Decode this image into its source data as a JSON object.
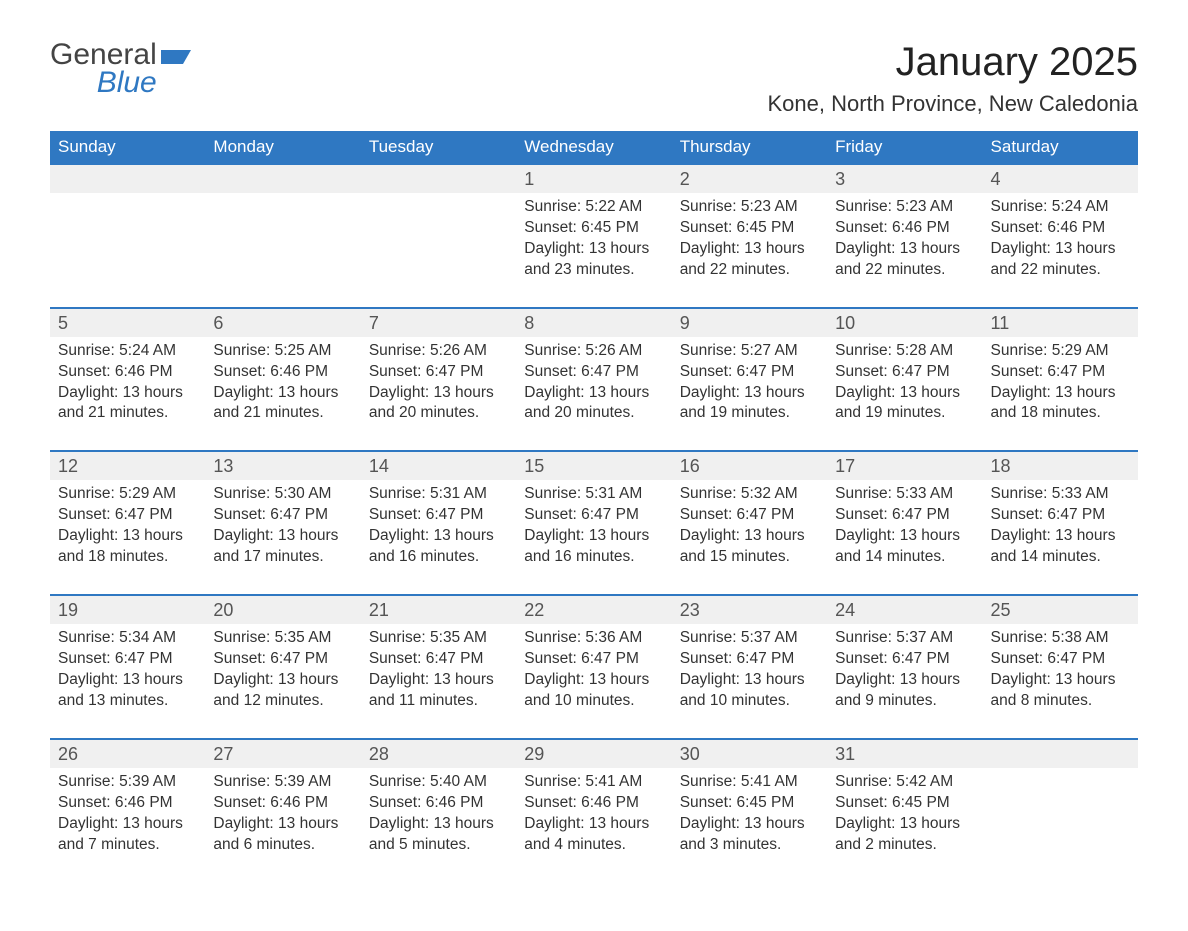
{
  "branding": {
    "logo_general": "General",
    "logo_blue": "Blue",
    "logo_color_dark": "#444444",
    "logo_color_accent": "#2f78c2"
  },
  "header": {
    "title": "January 2025",
    "location": "Kone, North Province, New Caledonia"
  },
  "style": {
    "accent": "#2f78c2",
    "header_row_bg": "#2f78c2",
    "header_text_color": "#ffffff",
    "daynum_bg": "#f0f0f0",
    "divider_color": "#2f78c2",
    "body_bg": "#ffffff",
    "font_family": "Arial",
    "title_fontsize": 40,
    "subtitle_fontsize": 22,
    "dayheader_fontsize": 17,
    "cell_fontsize": 15.5
  },
  "labels": {
    "sunrise": "Sunrise",
    "sunset": "Sunset",
    "daylight": "Daylight"
  },
  "calendar": {
    "type": "calendar-month",
    "columns": 7,
    "day_headers": [
      "Sunday",
      "Monday",
      "Tuesday",
      "Wednesday",
      "Thursday",
      "Friday",
      "Saturday"
    ],
    "weeks": [
      [
        null,
        null,
        null,
        {
          "day": 1,
          "sunrise": "5:22 AM",
          "sunset": "6:45 PM",
          "daylight": "13 hours and 23 minutes."
        },
        {
          "day": 2,
          "sunrise": "5:23 AM",
          "sunset": "6:45 PM",
          "daylight": "13 hours and 22 minutes."
        },
        {
          "day": 3,
          "sunrise": "5:23 AM",
          "sunset": "6:46 PM",
          "daylight": "13 hours and 22 minutes."
        },
        {
          "day": 4,
          "sunrise": "5:24 AM",
          "sunset": "6:46 PM",
          "daylight": "13 hours and 22 minutes."
        }
      ],
      [
        {
          "day": 5,
          "sunrise": "5:24 AM",
          "sunset": "6:46 PM",
          "daylight": "13 hours and 21 minutes."
        },
        {
          "day": 6,
          "sunrise": "5:25 AM",
          "sunset": "6:46 PM",
          "daylight": "13 hours and 21 minutes."
        },
        {
          "day": 7,
          "sunrise": "5:26 AM",
          "sunset": "6:47 PM",
          "daylight": "13 hours and 20 minutes."
        },
        {
          "day": 8,
          "sunrise": "5:26 AM",
          "sunset": "6:47 PM",
          "daylight": "13 hours and 20 minutes."
        },
        {
          "day": 9,
          "sunrise": "5:27 AM",
          "sunset": "6:47 PM",
          "daylight": "13 hours and 19 minutes."
        },
        {
          "day": 10,
          "sunrise": "5:28 AM",
          "sunset": "6:47 PM",
          "daylight": "13 hours and 19 minutes."
        },
        {
          "day": 11,
          "sunrise": "5:29 AM",
          "sunset": "6:47 PM",
          "daylight": "13 hours and 18 minutes."
        }
      ],
      [
        {
          "day": 12,
          "sunrise": "5:29 AM",
          "sunset": "6:47 PM",
          "daylight": "13 hours and 18 minutes."
        },
        {
          "day": 13,
          "sunrise": "5:30 AM",
          "sunset": "6:47 PM",
          "daylight": "13 hours and 17 minutes."
        },
        {
          "day": 14,
          "sunrise": "5:31 AM",
          "sunset": "6:47 PM",
          "daylight": "13 hours and 16 minutes."
        },
        {
          "day": 15,
          "sunrise": "5:31 AM",
          "sunset": "6:47 PM",
          "daylight": "13 hours and 16 minutes."
        },
        {
          "day": 16,
          "sunrise": "5:32 AM",
          "sunset": "6:47 PM",
          "daylight": "13 hours and 15 minutes."
        },
        {
          "day": 17,
          "sunrise": "5:33 AM",
          "sunset": "6:47 PM",
          "daylight": "13 hours and 14 minutes."
        },
        {
          "day": 18,
          "sunrise": "5:33 AM",
          "sunset": "6:47 PM",
          "daylight": "13 hours and 14 minutes."
        }
      ],
      [
        {
          "day": 19,
          "sunrise": "5:34 AM",
          "sunset": "6:47 PM",
          "daylight": "13 hours and 13 minutes."
        },
        {
          "day": 20,
          "sunrise": "5:35 AM",
          "sunset": "6:47 PM",
          "daylight": "13 hours and 12 minutes."
        },
        {
          "day": 21,
          "sunrise": "5:35 AM",
          "sunset": "6:47 PM",
          "daylight": "13 hours and 11 minutes."
        },
        {
          "day": 22,
          "sunrise": "5:36 AM",
          "sunset": "6:47 PM",
          "daylight": "13 hours and 10 minutes."
        },
        {
          "day": 23,
          "sunrise": "5:37 AM",
          "sunset": "6:47 PM",
          "daylight": "13 hours and 10 minutes."
        },
        {
          "day": 24,
          "sunrise": "5:37 AM",
          "sunset": "6:47 PM",
          "daylight": "13 hours and 9 minutes."
        },
        {
          "day": 25,
          "sunrise": "5:38 AM",
          "sunset": "6:47 PM",
          "daylight": "13 hours and 8 minutes."
        }
      ],
      [
        {
          "day": 26,
          "sunrise": "5:39 AM",
          "sunset": "6:46 PM",
          "daylight": "13 hours and 7 minutes."
        },
        {
          "day": 27,
          "sunrise": "5:39 AM",
          "sunset": "6:46 PM",
          "daylight": "13 hours and 6 minutes."
        },
        {
          "day": 28,
          "sunrise": "5:40 AM",
          "sunset": "6:46 PM",
          "daylight": "13 hours and 5 minutes."
        },
        {
          "day": 29,
          "sunrise": "5:41 AM",
          "sunset": "6:46 PM",
          "daylight": "13 hours and 4 minutes."
        },
        {
          "day": 30,
          "sunrise": "5:41 AM",
          "sunset": "6:45 PM",
          "daylight": "13 hours and 3 minutes."
        },
        {
          "day": 31,
          "sunrise": "5:42 AM",
          "sunset": "6:45 PM",
          "daylight": "13 hours and 2 minutes."
        },
        null
      ]
    ]
  }
}
